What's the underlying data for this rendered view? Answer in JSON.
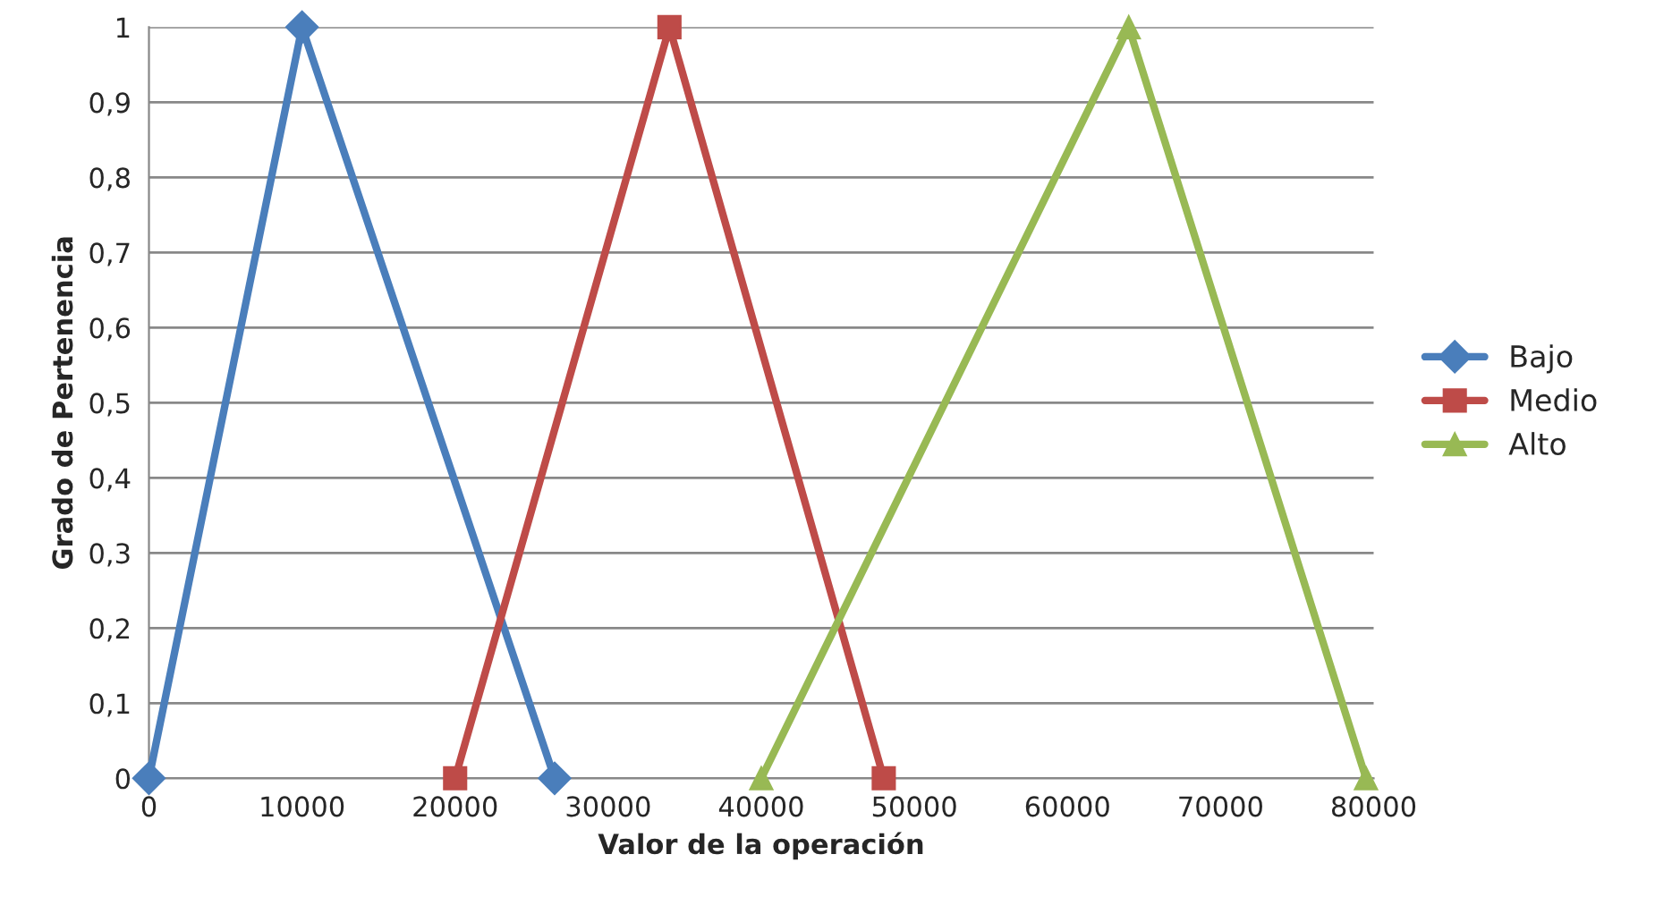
{
  "chart_data": {
    "type": "line",
    "xlabel": "Valor de la operación",
    "ylabel": "Grado de Pertenencia",
    "series": [
      {
        "name": "Bajo",
        "color": "#4a7ebb",
        "marker": "diamond",
        "x": [
          0,
          10000,
          26500
        ],
        "values": [
          0,
          1,
          0
        ]
      },
      {
        "name": "Medio",
        "color": "#be4b48",
        "marker": "square",
        "x": [
          20000,
          34000,
          48000
        ],
        "values": [
          0,
          1,
          0
        ]
      },
      {
        "name": "Alto",
        "color": "#98b954",
        "marker": "triangle",
        "x": [
          40000,
          64000,
          79500
        ],
        "values": [
          0,
          1,
          0
        ]
      }
    ],
    "xlim": [
      0,
      80000
    ],
    "xticks": [
      0,
      10000,
      20000,
      30000,
      40000,
      50000,
      60000,
      70000,
      80000
    ],
    "ylim": [
      0,
      1
    ],
    "yticks": [
      {
        "value": 0,
        "label": "0"
      },
      {
        "value": 0.1,
        "label": "0,1"
      },
      {
        "value": 0.2,
        "label": "0,2"
      },
      {
        "value": 0.3,
        "label": "0,3"
      },
      {
        "value": 0.4,
        "label": "0,4"
      },
      {
        "value": 0.5,
        "label": "0,5"
      },
      {
        "value": 0.6,
        "label": "0,6"
      },
      {
        "value": 0.7,
        "label": "0,7"
      },
      {
        "value": 0.8,
        "label": "0,8"
      },
      {
        "value": 0.9,
        "label": "0,9"
      },
      {
        "value": 1,
        "label": "1"
      }
    ],
    "grid": "y",
    "legend": "right",
    "line_style": "solid"
  }
}
